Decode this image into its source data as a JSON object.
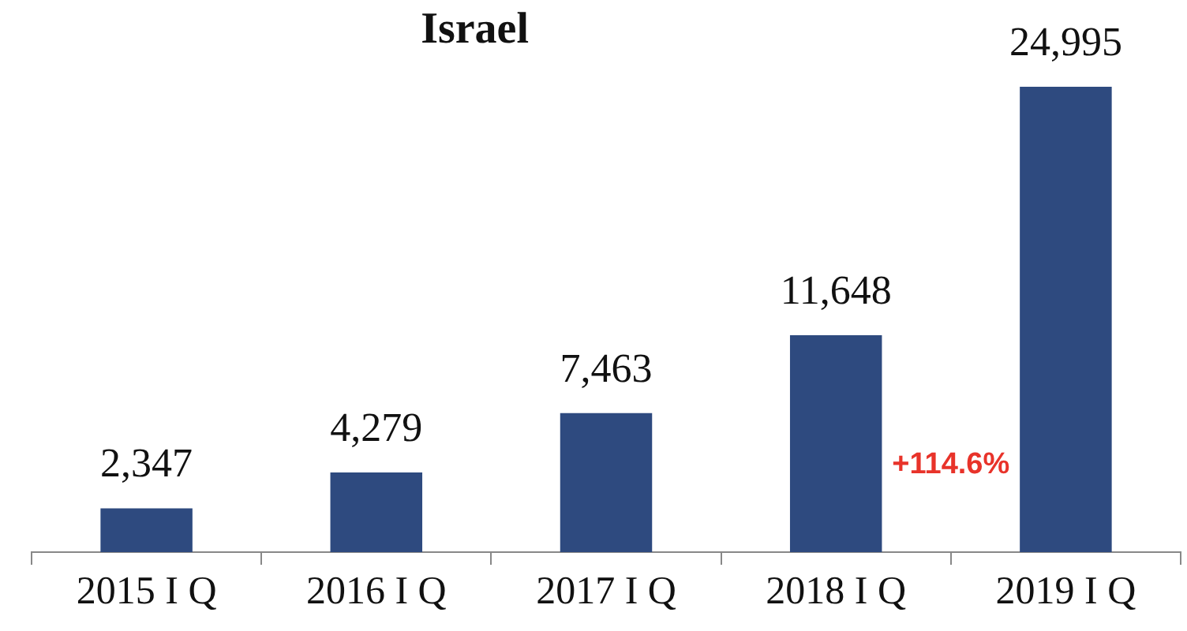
{
  "chart_data": {
    "type": "bar",
    "title": "Israel",
    "categories": [
      "2015 I Q",
      "2016 I Q",
      "2017 I Q",
      "2018 I Q",
      "2019 I Q"
    ],
    "values": [
      2347,
      4279,
      7463,
      11648,
      24995
    ],
    "color": "#2e4a7f",
    "value_labels": [
      "2,347",
      "4,279",
      "7,463",
      "11,648",
      "24,995"
    ],
    "annotations": [
      "+114.6%"
    ],
    "legend": false,
    "grid": false
  }
}
